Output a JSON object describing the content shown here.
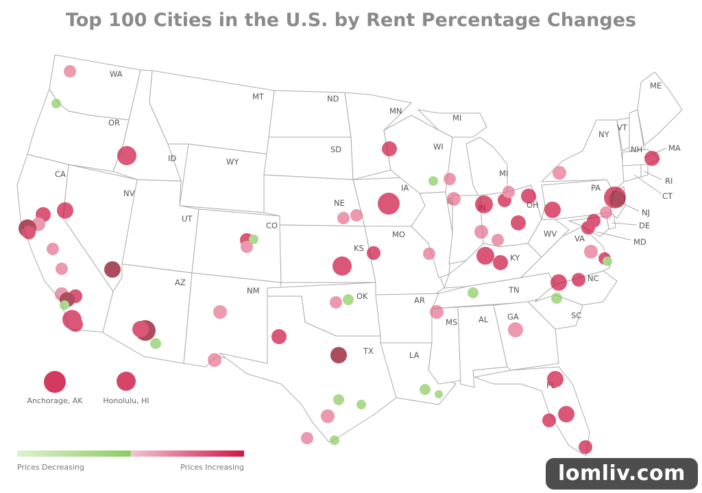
{
  "title": "Top 100 Cities in the U.S. by Rent Percentage Changes",
  "colors": {
    "decreasing": "#8ccc62",
    "increasing": "#cc1744",
    "increasing_light": "#e6718f",
    "strong": "#8c0a1e"
  },
  "state_labels": [
    "WA",
    "OR",
    "CA",
    "NV",
    "ID",
    "MT",
    "WY",
    "UT",
    "AZ",
    "CO",
    "NM",
    "ND",
    "SD",
    "NE",
    "KS",
    "OK",
    "TX",
    "MN",
    "IA",
    "MO",
    "AR",
    "LA",
    "WI",
    "MI",
    "IL",
    "IN",
    "OH",
    "KY",
    "TN",
    "MS",
    "AL",
    "GA",
    "FL",
    "SC",
    "NC",
    "VA",
    "WV",
    "PA",
    "NY",
    "VT",
    "NH",
    "ME",
    "MA",
    "RI",
    "CT",
    "NJ",
    "DE",
    "MD"
  ],
  "insets": {
    "alaska": "Anchorage, AK",
    "hawaii": "Honolulu, HI"
  },
  "legend": {
    "low": "Prices Decreasing",
    "high": "Prices Increasing"
  },
  "watermark": "lomliv.com"
}
